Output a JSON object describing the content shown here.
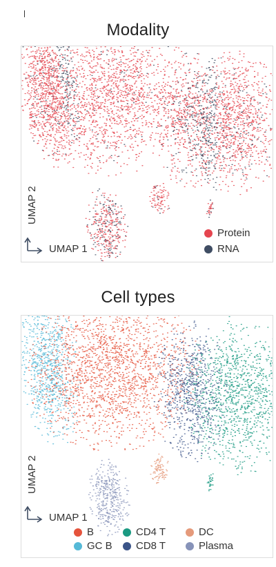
{
  "chart_data": [
    {
      "type": "scatter",
      "title": "Modality",
      "xlabel": "UMAP 1",
      "ylabel": "UMAP 2",
      "grid": false,
      "legend_position": "bottom-right",
      "series": [
        {
          "name": "Protein",
          "color": "#e5454f"
        },
        {
          "name": "RNA",
          "color": "#3f4d63"
        }
      ]
    },
    {
      "type": "scatter",
      "title": "Cell types",
      "xlabel": "UMAP 1",
      "ylabel": "UMAP 2",
      "grid": false,
      "legend_position": "bottom",
      "series": [
        {
          "name": "B",
          "color": "#e5533c"
        },
        {
          "name": "GC B",
          "color": "#55b9d7"
        },
        {
          "name": "CD4 T",
          "color": "#1b9a82"
        },
        {
          "name": "CD8 T",
          "color": "#3b5488"
        },
        {
          "name": "DC",
          "color": "#e59a7b"
        },
        {
          "name": "Plasma",
          "color": "#8793b9"
        }
      ]
    }
  ]
}
